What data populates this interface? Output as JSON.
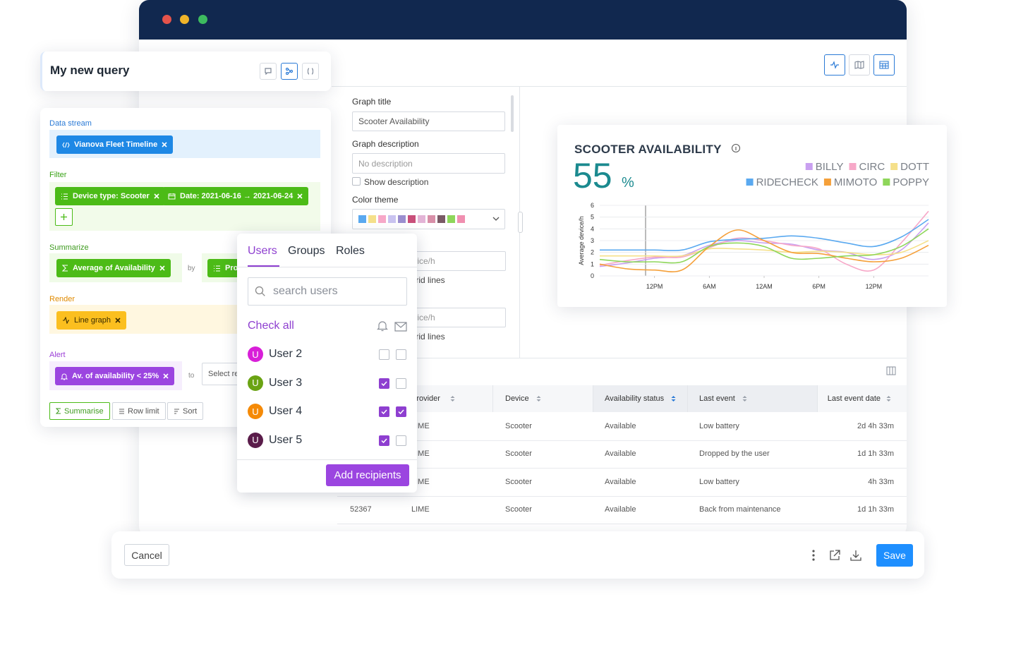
{
  "query": {
    "title": "My new query"
  },
  "builder": {
    "data_stream": {
      "label": "Data stream",
      "chips": [
        "Vianova Fleet Timeline"
      ]
    },
    "filter": {
      "label": "Filter",
      "chips": [
        "Device type: Scooter",
        "Date: 2021-06-16 → 2021-06-24"
      ]
    },
    "summarize": {
      "label": "Summarize",
      "chips": [
        "Average of Availability"
      ],
      "by": "by",
      "group_chips": [
        "Provider"
      ]
    },
    "render": {
      "label": "Render",
      "chips": [
        "Line graph"
      ]
    },
    "alert": {
      "label": "Alert",
      "chips": [
        "Av. of availability < 25%"
      ],
      "to": "to",
      "recipient_placeholder": "Select recipients"
    },
    "actions": [
      "Summarise",
      "Row limit",
      "Sort"
    ]
  },
  "settings": {
    "graph_title_label": "Graph title",
    "graph_title": "Scooter Availability",
    "graph_description_label": "Graph description",
    "graph_description_placeholder": "No description",
    "show_description": "Show description",
    "color_theme_label": "Color theme",
    "axis_input_1": "Device/h",
    "grid_lines_1": "Grid lines",
    "axis_input_2": "Device/h",
    "grid_lines_2": "Grid lines"
  },
  "recipients": {
    "tabs": [
      "Users",
      "Groups",
      "Roles"
    ],
    "search_placeholder": "search users",
    "check_all": "Check all",
    "users": [
      {
        "name": "User 2",
        "initial": "U",
        "color": "#d81fd8",
        "notify": false,
        "email": false
      },
      {
        "name": "User 3",
        "initial": "U",
        "color": "#6aa313",
        "notify": true,
        "email": false
      },
      {
        "name": "User 4",
        "initial": "U",
        "color": "#f58a07",
        "notify": true,
        "email": true
      },
      {
        "name": "User 5",
        "initial": "U",
        "color": "#5a1c4a",
        "notify": true,
        "email": false
      }
    ],
    "submit": "Add recipients"
  },
  "chart_data": {
    "type": "line",
    "title": "SCOOTER AVAILABILITY",
    "kpi_value": 55,
    "kpi_unit": "%",
    "y_label": "Average device/h",
    "x": [
      0,
      3,
      6,
      9,
      12,
      15,
      18,
      21,
      24,
      27,
      30,
      33,
      36
    ],
    "xlim": [
      0,
      36
    ],
    "xticks": [
      {
        "value": 6,
        "label": "12PM"
      },
      {
        "value": 12,
        "label": "6AM"
      },
      {
        "value": 18,
        "label": "12AM"
      },
      {
        "value": 24,
        "label": "6PM"
      },
      {
        "value": 30,
        "label": "12PM"
      }
    ],
    "ylim": [
      0,
      6
    ],
    "yticks": [
      0,
      1,
      2,
      3,
      4,
      5,
      6
    ],
    "grid": true,
    "series": [
      {
        "name": "BILLY",
        "color": "#c9a0f0",
        "values": [
          0.8,
          1.1,
          1.5,
          1.7,
          2.6,
          3.0,
          2.8,
          2.7,
          2.2,
          2.0,
          1.4,
          2.2,
          4.5
        ]
      },
      {
        "name": "CIRC",
        "color": "#f7a8c8",
        "values": [
          0.9,
          1.3,
          1.6,
          1.6,
          2.4,
          3.2,
          3.0,
          2.6,
          2.3,
          1.0,
          0.5,
          2.8,
          5.5
        ]
      },
      {
        "name": "DOTT",
        "color": "#f5e08a",
        "values": [
          1.7,
          1.7,
          1.7,
          1.7,
          2.3,
          2.3,
          2.2,
          2.0,
          2.1,
          2.0,
          1.8,
          2.0,
          3.0
        ]
      },
      {
        "name": "RIDECHECK",
        "color": "#5aa9f0",
        "values": [
          2.2,
          2.2,
          2.2,
          2.2,
          2.9,
          3.1,
          3.2,
          3.4,
          3.2,
          2.8,
          2.5,
          3.3,
          4.8
        ]
      },
      {
        "name": "MIMOTO",
        "color": "#f5a03a",
        "values": [
          1.0,
          0.6,
          0.5,
          0.5,
          2.5,
          3.9,
          3.0,
          2.0,
          1.9,
          1.5,
          1.2,
          1.5,
          2.6
        ]
      },
      {
        "name": "POPPY",
        "color": "#8ed65a",
        "values": [
          1.4,
          1.2,
          1.2,
          1.2,
          2.5,
          2.8,
          2.5,
          1.5,
          1.5,
          1.7,
          1.8,
          2.5,
          4.0
        ]
      }
    ]
  },
  "table": {
    "columns": [
      "Provider",
      "Device",
      "Availability status",
      "Last event",
      "Last event date"
    ],
    "ids": [
      null,
      null,
      null,
      "52367"
    ],
    "rows": [
      [
        "LIME",
        "Scooter",
        "Available",
        "Low battery",
        "2d 4h 33m"
      ],
      [
        "LIME",
        "Scooter",
        "Available",
        "Dropped by the user",
        "1d 1h 33m"
      ],
      [
        "LIME",
        "Scooter",
        "Available",
        "Low battery",
        "4h 33m"
      ],
      [
        "LIME",
        "Scooter",
        "Available",
        "Back from maintenance",
        "1d 1h 33m"
      ]
    ]
  },
  "footer": {
    "cancel": "Cancel",
    "save": "Save"
  }
}
